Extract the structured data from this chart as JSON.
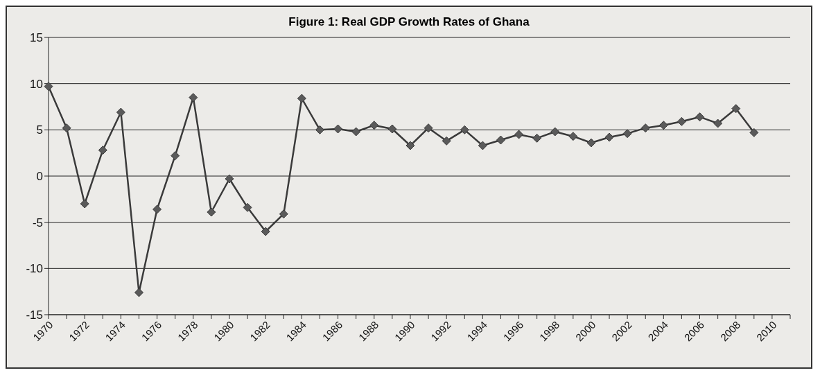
{
  "chart_data": {
    "type": "line",
    "title": "Figure 1: Real GDP Growth Rates of Ghana",
    "categories": [
      "1970",
      null,
      "1972",
      null,
      "1974",
      null,
      "1976",
      null,
      "1978",
      null,
      "1980",
      null,
      "1982",
      null,
      "1984",
      null,
      "1986",
      null,
      "1988",
      null,
      "1990",
      null,
      "1992",
      null,
      "1994",
      null,
      "1996",
      null,
      "1998",
      null,
      "2000",
      null,
      "2002",
      null,
      "2004",
      null,
      "2006",
      null,
      "2008",
      null,
      "2010",
      null
    ],
    "series": [
      {
        "color": "#3a3a3a",
        "values": [
          9.7,
          5.2,
          -3.0,
          2.8,
          6.9,
          -12.6,
          -3.6,
          2.2,
          8.5,
          -3.9,
          -0.3,
          -3.4,
          -6.0,
          -4.1,
          8.4,
          5.0,
          5.1,
          4.8,
          5.5,
          5.1,
          3.3,
          5.2,
          3.8,
          5.0,
          3.3,
          3.9,
          4.5,
          4.1,
          4.8,
          4.3,
          3.6,
          4.2,
          4.6,
          5.2,
          5.5,
          5.9,
          6.4,
          5.7,
          7.3,
          4.7,
          null,
          null
        ]
      }
    ],
    "ylim": [
      -15,
      15
    ],
    "yticks": [
      -15,
      -10,
      -5,
      0,
      5,
      10,
      15
    ],
    "grid": "y",
    "marker": "diamond",
    "line_style": "solid",
    "legend": false
  }
}
